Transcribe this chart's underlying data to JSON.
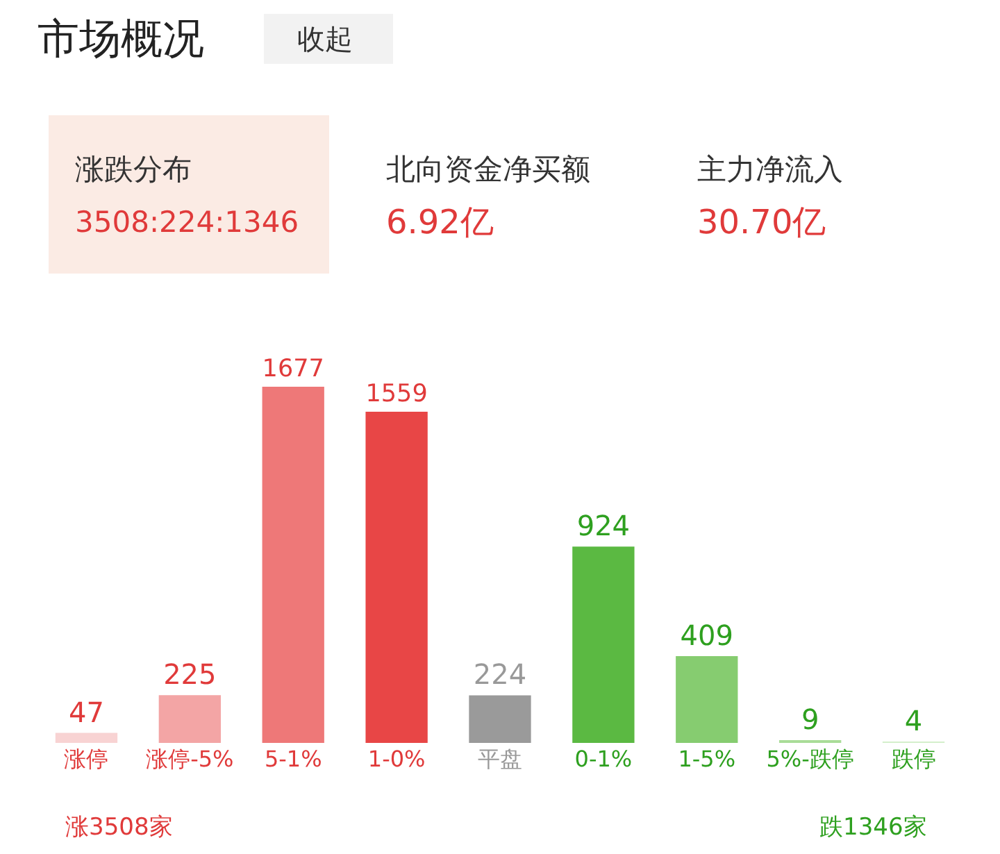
{
  "chart_data": {
    "type": "bar",
    "title": "市场概况",
    "categories": [
      "涨停",
      "涨停-5%",
      "5-1%",
      "1-0%",
      "平盘",
      "0-1%",
      "1-5%",
      "5%-跌停",
      "跌停"
    ],
    "values": [
      47,
      225,
      1677,
      1559,
      224,
      924,
      409,
      9,
      4
    ],
    "colors": [
      "#f8d3d3",
      "#f3a5a5",
      "#ee7878",
      "#e84646",
      "#9a9a9a",
      "#5bb942",
      "#86cc70",
      "#a9dc98",
      "#d4efcb"
    ],
    "data_labels": true,
    "annotations": [
      "收起",
      "涨跌分布",
      "3508:224:1346",
      "北向资金净买额",
      "6.92亿",
      "主力净流入",
      "30.70亿",
      "涨3508家",
      "跌1346家"
    ]
  }
}
